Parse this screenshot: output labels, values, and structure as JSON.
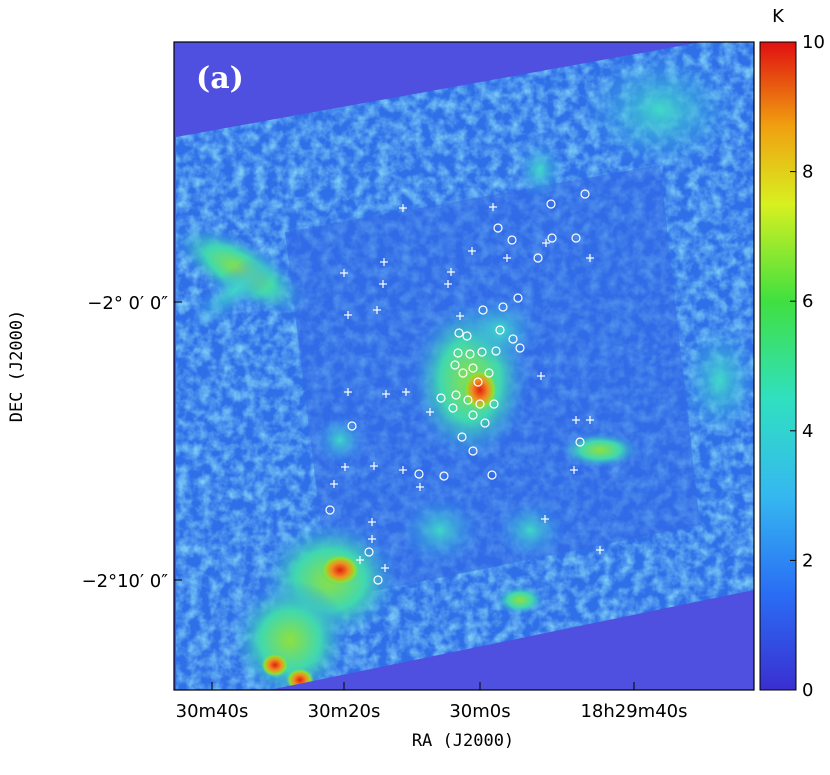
{
  "chart_data": {
    "type": "heatmap",
    "panel_label": "(a)",
    "xlabel": "RA (J2000)",
    "ylabel": "DEC (J2000)",
    "x_ticks": [
      "30m40s",
      "30m20s",
      "30m0s",
      "18h29m40s"
    ],
    "y_ticks": [
      "−2° 0′ 0″",
      "−2°10′ 0″"
    ],
    "colorbar": {
      "unit": "K",
      "min": 0,
      "max": 10,
      "ticks": [
        "0",
        "2",
        "4",
        "6",
        "8",
        "10"
      ]
    },
    "colors": {
      "background": "#5050e0",
      "map_base": "#2f6fe8",
      "low": "#3a8ef0",
      "mid": "#35d8c0",
      "high": "#7ee030",
      "peak": "#e02010"
    },
    "markers": {
      "circle_color": "#ffffff",
      "plus_color": "#ffffff"
    }
  }
}
